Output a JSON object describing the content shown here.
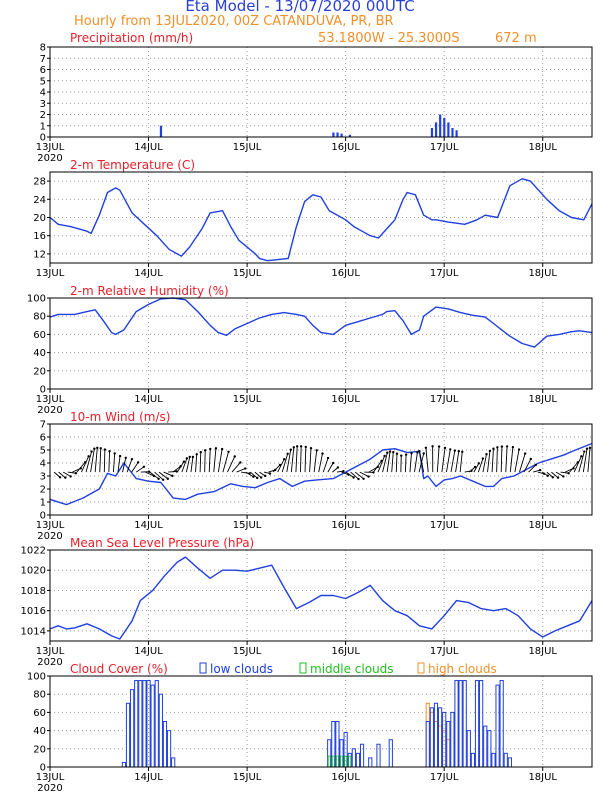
{
  "header": {
    "title": "Eta Model - 13/07/2020 00UTC",
    "subtitle": "Hourly from 13JUL2020, 00Z  CATANDUVA, PR, BR",
    "coords": "53.1800W - 25.3000S",
    "elevation": "672  m",
    "title_color": "#2a3fd6",
    "subtitle_color": "#f0902a"
  },
  "colors": {
    "series": "#2040e0",
    "panel_title": "#e8202a",
    "wind_barb": "#000000",
    "middle_clouds": "#20c020",
    "high_clouds": "#f0902a",
    "grid": "#9a9a9a"
  },
  "chart_data": [
    {
      "id": "precip",
      "type": "bar",
      "title": "Precipitation (mm/h)",
      "x_unit": "hours since 13JUL2020 00Z",
      "ylim": [
        0,
        8
      ],
      "yticks": [
        0,
        1,
        2,
        3,
        4,
        5,
        6,
        7,
        8
      ],
      "xtick_labels": [
        "13JUL",
        "14JUL",
        "15JUL",
        "16JUL",
        "17JUL",
        "18JUL"
      ],
      "year_label": "2020",
      "x": [
        27,
        69,
        70,
        71,
        73,
        93,
        94,
        95,
        96,
        97,
        98,
        99
      ],
      "values": [
        1.0,
        0.4,
        0.4,
        0.3,
        0.2,
        0.8,
        1.3,
        2.0,
        1.7,
        1.3,
        0.8,
        0.6
      ]
    },
    {
      "id": "temp",
      "type": "line",
      "title": "2-m Temperature (C)",
      "ylim": [
        10,
        30
      ],
      "yticks": [
        12,
        16,
        20,
        24,
        28
      ],
      "xtick_labels": [
        "13JUL",
        "14JUL",
        "15JUL",
        "16JUL",
        "17JUL",
        "18JUL"
      ],
      "year_label": "",
      "x": [
        0,
        2,
        5,
        9,
        10,
        12,
        14,
        16,
        17,
        20,
        23,
        26,
        29,
        32,
        34,
        37,
        39,
        42,
        44,
        46,
        48,
        50,
        51,
        53,
        55,
        58,
        60,
        62,
        64,
        66,
        68,
        70,
        72,
        74,
        76,
        78,
        80,
        82,
        84,
        86,
        87,
        89,
        91,
        93,
        94,
        97,
        101,
        104,
        106,
        109,
        112,
        115,
        117,
        121,
        124,
        127,
        130,
        132
      ],
      "values": [
        20.0,
        18.5,
        18.0,
        17.0,
        16.5,
        20.5,
        25.5,
        26.5,
        26.0,
        21.0,
        18.5,
        16.0,
        13.0,
        11.5,
        13.5,
        17.5,
        21.0,
        21.5,
        18.0,
        15.0,
        13.5,
        12.0,
        11.0,
        10.5,
        10.7,
        11.0,
        18.0,
        23.5,
        25.0,
        24.5,
        21.5,
        20.5,
        19.5,
        18.0,
        17.0,
        16.0,
        15.5,
        17.5,
        19.5,
        24.0,
        25.5,
        25.0,
        20.5,
        19.5,
        19.5,
        19.0,
        18.5,
        19.5,
        20.5,
        20.0,
        27.0,
        28.5,
        28.0,
        24.0,
        21.5,
        20.0,
        19.5,
        23.0
      ]
    },
    {
      "id": "rh",
      "type": "line",
      "title": "2-m Relative Humidity (%)",
      "ylim": [
        0,
        100
      ],
      "yticks": [
        0,
        20,
        40,
        60,
        80,
        100
      ],
      "xtick_labels": [
        "13JUL",
        "14JUL",
        "15JUL",
        "16JUL",
        "17JUL",
        "18JUL"
      ],
      "year_label": "2020",
      "x": [
        0,
        2,
        6,
        9,
        11,
        13,
        15,
        16,
        18,
        21,
        24,
        27,
        30,
        33,
        36,
        39,
        41,
        43,
        45,
        48,
        51,
        54,
        57,
        60,
        62,
        64,
        66,
        69,
        72,
        75,
        78,
        81,
        82,
        84,
        86,
        88,
        90,
        91,
        94,
        97,
        100,
        103,
        106,
        108,
        110,
        112,
        115,
        118,
        121,
        124,
        127,
        129,
        132
      ],
      "values": [
        79,
        82,
        82,
        85,
        87,
        75,
        62,
        60,
        65,
        85,
        93,
        99,
        100,
        98,
        85,
        70,
        62,
        59,
        66,
        72,
        78,
        82,
        84,
        82,
        80,
        70,
        62,
        60,
        70,
        74,
        78,
        82,
        85,
        86,
        75,
        60,
        65,
        80,
        90,
        88,
        84,
        81,
        79,
        72,
        65,
        58,
        50,
        46,
        58,
        60,
        63,
        64,
        62
      ]
    },
    {
      "id": "wind",
      "type": "line",
      "title": "10-m Wind (m/s)",
      "ylim": [
        0,
        7
      ],
      "yticks": [
        0,
        1,
        2,
        3,
        4,
        5,
        6,
        7
      ],
      "xtick_labels": [
        "13JUL",
        "14JUL",
        "15JUL",
        "16JUL",
        "17JUL",
        "18JUL"
      ],
      "year_label": "2020",
      "x": [
        0,
        4,
        8,
        12,
        14,
        16,
        18,
        21,
        24,
        27,
        30,
        33,
        36,
        40,
        44,
        47,
        50,
        53,
        56,
        59,
        62,
        65,
        69,
        72,
        75,
        78,
        81,
        84,
        87,
        90,
        91,
        92,
        94,
        96,
        98,
        100,
        103,
        106,
        108,
        110,
        113,
        116,
        119,
        122,
        125,
        128,
        132
      ],
      "values": [
        1.2,
        0.8,
        1.3,
        2.0,
        3.2,
        3.0,
        4.0,
        2.8,
        2.6,
        2.5,
        1.3,
        1.2,
        1.6,
        1.8,
        2.4,
        2.2,
        2.1,
        2.5,
        2.8,
        2.2,
        2.6,
        2.7,
        2.8,
        3.3,
        3.8,
        4.3,
        5.0,
        5.1,
        4.8,
        4.9,
        2.8,
        3.0,
        2.2,
        2.7,
        2.8,
        3.0,
        2.6,
        2.2,
        2.2,
        2.8,
        3.0,
        3.5,
        4.0,
        4.3,
        4.6,
        5.0,
        5.5
      ],
      "barbs_note": "wind direction arrows along centerline"
    },
    {
      "id": "mslp",
      "type": "line",
      "title": "Mean Sea Level Pressure (hPa)",
      "ylim": [
        1013,
        1022
      ],
      "yticks": [
        1014,
        1016,
        1018,
        1020,
        1022
      ],
      "xtick_labels": [
        "13JUL",
        "14JUL",
        "15JUL",
        "16JUL",
        "17JUL",
        "18JUL"
      ],
      "year_label": "2020",
      "x": [
        0,
        2,
        4,
        6,
        9,
        12,
        15,
        17,
        20,
        22,
        25,
        28,
        31,
        33,
        36,
        39,
        42,
        45,
        48,
        51,
        54,
        57,
        60,
        63,
        66,
        69,
        72,
        75,
        78,
        81,
        84,
        87,
        90,
        93,
        96,
        99,
        102,
        105,
        108,
        111,
        114,
        117,
        120,
        123,
        126,
        129,
        132
      ],
      "values": [
        1014.2,
        1014.5,
        1014.2,
        1014.3,
        1014.7,
        1014.2,
        1013.5,
        1013.2,
        1015.0,
        1017.0,
        1018.0,
        1019.5,
        1020.8,
        1021.3,
        1020.2,
        1019.2,
        1020.0,
        1020.0,
        1019.9,
        1020.2,
        1020.5,
        1018.3,
        1016.2,
        1016.8,
        1017.5,
        1017.5,
        1017.2,
        1017.8,
        1018.5,
        1017.0,
        1016.0,
        1015.5,
        1014.5,
        1014.2,
        1015.5,
        1017.0,
        1016.8,
        1016.2,
        1016.0,
        1016.2,
        1015.5,
        1014.2,
        1013.4,
        1014.0,
        1014.5,
        1015.0,
        1017.0
      ]
    },
    {
      "id": "cloud",
      "type": "bar",
      "title": "Cloud Cover (%)",
      "ylim": [
        0,
        100
      ],
      "yticks": [
        0,
        20,
        40,
        60,
        80,
        100
      ],
      "xtick_labels": [
        "13JUL",
        "14JUL",
        "15JUL",
        "16JUL",
        "17JUL",
        "18JUL"
      ],
      "year_label": "2020",
      "legend": [
        "low clouds",
        "middle clouds",
        "high clouds"
      ],
      "series": [
        {
          "name": "low clouds",
          "x": [
            18,
            19,
            20,
            21,
            22,
            23,
            24,
            25,
            26,
            27,
            28,
            29,
            30,
            68,
            69,
            70,
            71,
            72,
            73,
            74,
            75,
            76,
            78,
            80,
            83,
            92,
            93,
            94,
            95,
            96,
            97,
            98,
            99,
            100,
            101,
            102,
            103,
            104,
            105,
            106,
            107,
            108,
            109,
            110,
            111,
            112
          ],
          "values": [
            5,
            70,
            85,
            95,
            95,
            95,
            95,
            90,
            95,
            80,
            50,
            40,
            10,
            30,
            50,
            50,
            30,
            38,
            15,
            20,
            15,
            25,
            10,
            25,
            30,
            50,
            65,
            70,
            65,
            60,
            50,
            60,
            95,
            95,
            95,
            40,
            15,
            95,
            95,
            45,
            40,
            15,
            90,
            95,
            15,
            10
          ],
          "high_x": [
            92,
            93,
            94,
            95,
            96,
            97
          ],
          "high_values": [
            70,
            60,
            50,
            45,
            40,
            30
          ]
        }
      ]
    }
  ]
}
